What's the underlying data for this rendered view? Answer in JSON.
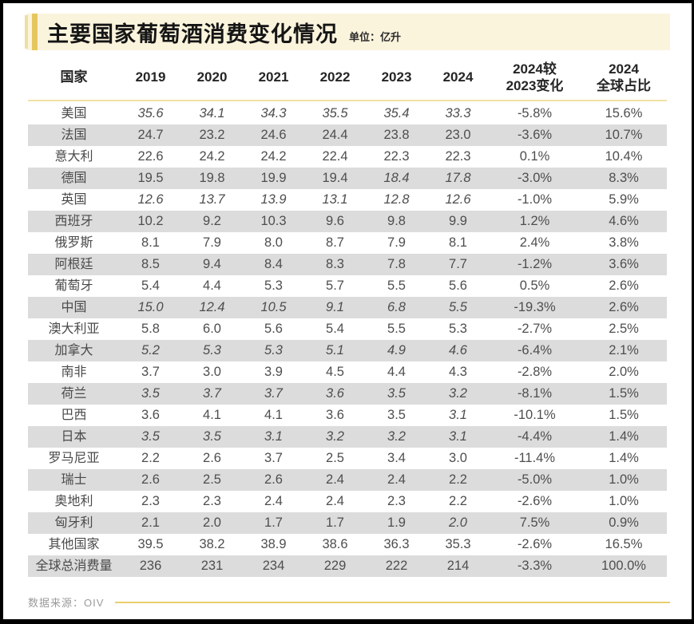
{
  "title": "主要国家葡萄酒消费变化情况",
  "unit_label": "单位：亿升",
  "source_label": "数据来源：OIV",
  "colors": {
    "accent_gold": "#e6c75f",
    "accent_pale_gold": "#efdf9f",
    "title_band_cream": "#fbf4dd",
    "header_divider": "#f0e2a4",
    "row_stripe_gray": "#dcdcdc",
    "footer_rule_gold": "#e8cf6e",
    "frame_black": "#000000",
    "text_dark": "#252525",
    "text_gray": "#4e4e4e",
    "source_gray": "#9a9a9a"
  },
  "chart_data": {
    "type": "table",
    "title": "主要国家葡萄酒消费变化情况",
    "unit": "亿升",
    "columns": [
      "国家",
      "2019",
      "2020",
      "2021",
      "2022",
      "2023",
      "2024",
      "2024较\n2023变化",
      "2024\n全球占比"
    ],
    "rows": [
      {
        "country": "美国",
        "values": [
          "35.6",
          "34.1",
          "34.3",
          "35.5",
          "35.4",
          "33.3"
        ],
        "italic": [
          true,
          true,
          true,
          true,
          true,
          true
        ],
        "change": "-5.8%",
        "share": "15.6%"
      },
      {
        "country": "法国",
        "values": [
          "24.7",
          "23.2",
          "24.6",
          "24.4",
          "23.8",
          "23.0"
        ],
        "italic": [
          false,
          false,
          false,
          false,
          false,
          false
        ],
        "change": "-3.6%",
        "share": "10.7%"
      },
      {
        "country": "意大利",
        "values": [
          "22.6",
          "24.2",
          "24.2",
          "22.4",
          "22.3",
          "22.3"
        ],
        "italic": [
          false,
          false,
          false,
          false,
          false,
          false
        ],
        "change": "0.1%",
        "share": "10.4%"
      },
      {
        "country": "德国",
        "values": [
          "19.5",
          "19.8",
          "19.9",
          "19.4",
          "18.4",
          "17.8"
        ],
        "italic": [
          false,
          false,
          false,
          false,
          true,
          true
        ],
        "change": "-3.0%",
        "share": "8.3%"
      },
      {
        "country": "英国",
        "values": [
          "12.6",
          "13.7",
          "13.9",
          "13.1",
          "12.8",
          "12.6"
        ],
        "italic": [
          true,
          true,
          true,
          true,
          true,
          true
        ],
        "change": "-1.0%",
        "share": "5.9%"
      },
      {
        "country": "西班牙",
        "values": [
          "10.2",
          "9.2",
          "10.3",
          "9.6",
          "9.8",
          "9.9"
        ],
        "italic": [
          false,
          false,
          false,
          false,
          false,
          false
        ],
        "change": "1.2%",
        "share": "4.6%"
      },
      {
        "country": "俄罗斯",
        "values": [
          "8.1",
          "7.9",
          "8.0",
          "8.7",
          "7.9",
          "8.1"
        ],
        "italic": [
          false,
          false,
          false,
          false,
          false,
          false
        ],
        "change": "2.4%",
        "share": "3.8%"
      },
      {
        "country": "阿根廷",
        "values": [
          "8.5",
          "9.4",
          "8.4",
          "8.3",
          "7.8",
          "7.7"
        ],
        "italic": [
          false,
          false,
          false,
          false,
          false,
          false
        ],
        "change": "-1.2%",
        "share": "3.6%"
      },
      {
        "country": "葡萄牙",
        "values": [
          "5.4",
          "4.4",
          "5.3",
          "5.7",
          "5.5",
          "5.6"
        ],
        "italic": [
          false,
          false,
          false,
          false,
          false,
          false
        ],
        "change": "0.5%",
        "share": "2.6%"
      },
      {
        "country": "中国",
        "values": [
          "15.0",
          "12.4",
          "10.5",
          "9.1",
          "6.8",
          "5.5"
        ],
        "italic": [
          true,
          true,
          true,
          true,
          true,
          true
        ],
        "change": "-19.3%",
        "share": "2.6%"
      },
      {
        "country": "澳大利亚",
        "values": [
          "5.8",
          "6.0",
          "5.6",
          "5.4",
          "5.5",
          "5.3"
        ],
        "italic": [
          false,
          false,
          false,
          false,
          false,
          false
        ],
        "change": "-2.7%",
        "share": "2.5%"
      },
      {
        "country": "加拿大",
        "values": [
          "5.2",
          "5.3",
          "5.3",
          "5.1",
          "4.9",
          "4.6"
        ],
        "italic": [
          true,
          true,
          true,
          true,
          true,
          true
        ],
        "change": "-6.4%",
        "share": "2.1%"
      },
      {
        "country": "南非",
        "values": [
          "3.7",
          "3.0",
          "3.9",
          "4.5",
          "4.4",
          "4.3"
        ],
        "italic": [
          false,
          false,
          false,
          false,
          false,
          false
        ],
        "change": "-2.8%",
        "share": "2.0%"
      },
      {
        "country": "荷兰",
        "values": [
          "3.5",
          "3.7",
          "3.7",
          "3.6",
          "3.5",
          "3.2"
        ],
        "italic": [
          true,
          true,
          true,
          true,
          true,
          true
        ],
        "change": "-8.1%",
        "share": "1.5%"
      },
      {
        "country": "巴西",
        "values": [
          "3.6",
          "4.1",
          "4.1",
          "3.6",
          "3.5",
          "3.1"
        ],
        "italic": [
          false,
          false,
          false,
          false,
          false,
          true
        ],
        "change": "-10.1%",
        "share": "1.5%"
      },
      {
        "country": "日本",
        "values": [
          "3.5",
          "3.5",
          "3.1",
          "3.2",
          "3.2",
          "3.1"
        ],
        "italic": [
          true,
          true,
          true,
          true,
          true,
          true
        ],
        "change": "-4.4%",
        "share": "1.4%"
      },
      {
        "country": "罗马尼亚",
        "values": [
          "2.2",
          "2.6",
          "3.7",
          "2.5",
          "3.4",
          "3.0"
        ],
        "italic": [
          false,
          false,
          false,
          false,
          false,
          false
        ],
        "change": "-11.4%",
        "share": "1.4%"
      },
      {
        "country": "瑞士",
        "values": [
          "2.6",
          "2.5",
          "2.6",
          "2.4",
          "2.4",
          "2.2"
        ],
        "italic": [
          false,
          false,
          false,
          false,
          false,
          false
        ],
        "change": "-5.0%",
        "share": "1.0%"
      },
      {
        "country": "奥地利",
        "values": [
          "2.3",
          "2.3",
          "2.4",
          "2.4",
          "2.3",
          "2.2"
        ],
        "italic": [
          false,
          false,
          false,
          false,
          false,
          false
        ],
        "change": "-2.6%",
        "share": "1.0%"
      },
      {
        "country": "匈牙利",
        "values": [
          "2.1",
          "2.0",
          "1.7",
          "1.7",
          "1.9",
          "2.0"
        ],
        "italic": [
          false,
          false,
          false,
          false,
          false,
          true
        ],
        "change": "7.5%",
        "share": "0.9%"
      },
      {
        "country": "其他国家",
        "values": [
          "39.5",
          "38.2",
          "38.9",
          "38.6",
          "36.3",
          "35.3"
        ],
        "italic": [
          false,
          false,
          false,
          false,
          false,
          false
        ],
        "change": "-2.6%",
        "share": "16.5%"
      },
      {
        "country": "全球总消费量",
        "values": [
          "236",
          "231",
          "234",
          "229",
          "222",
          "214"
        ],
        "italic": [
          false,
          false,
          false,
          false,
          false,
          false
        ],
        "change": "-3.3%",
        "share": "100.0%"
      }
    ],
    "source": "数据来源：OIV",
    "legend_position": "none",
    "grid": "row-stripes"
  }
}
